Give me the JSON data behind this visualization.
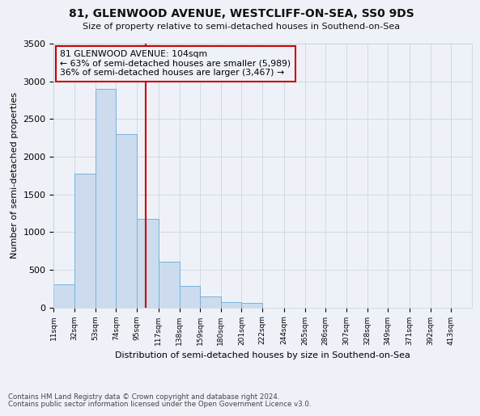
{
  "title_line1": "81, GLENWOOD AVENUE, WESTCLIFF-ON-SEA, SS0 9DS",
  "title_line2": "Size of property relative to semi-detached houses in Southend-on-Sea",
  "xlabel": "Distribution of semi-detached houses by size in Southend-on-Sea",
  "ylabel": "Number of semi-detached properties",
  "footnote1": "Contains HM Land Registry data © Crown copyright and database right 2024.",
  "footnote2": "Contains public sector information licensed under the Open Government Licence v3.0.",
  "annotation_line1": "81 GLENWOOD AVENUE: 104sqm",
  "annotation_line2": "← 63% of semi-detached houses are smaller (5,989)",
  "annotation_line3": "36% of semi-detached houses are larger (3,467) →",
  "property_size": 104,
  "bin_edges": [
    11,
    32,
    53,
    74,
    95,
    117,
    138,
    159,
    180,
    201,
    222,
    244,
    265,
    286,
    307,
    328,
    349,
    371,
    392,
    413,
    434
  ],
  "bin_counts": [
    305,
    1775,
    2900,
    2300,
    1170,
    610,
    290,
    145,
    75,
    55,
    0,
    0,
    0,
    0,
    0,
    0,
    0,
    0,
    0,
    0
  ],
  "bar_color": "#ccdcee",
  "bar_edge_color": "#7ab0d8",
  "property_line_color": "#cc0000",
  "bg_color": "#eef2f8",
  "grid_color": "#c8cfd8",
  "ylim": [
    0,
    3500
  ],
  "yticks": [
    0,
    500,
    1000,
    1500,
    2000,
    2500,
    3000,
    3500
  ]
}
